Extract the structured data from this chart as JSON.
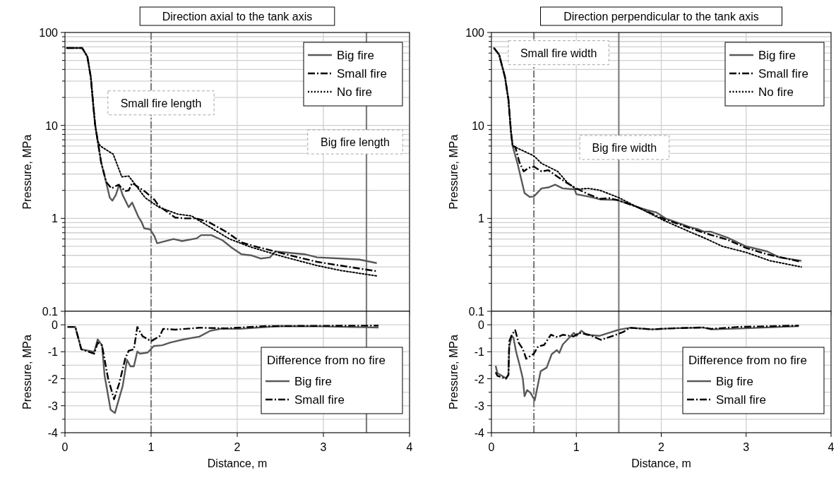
{
  "chart_data": [
    {
      "type": "line",
      "title": "Direction axial to the tank axis",
      "ylabel": "Pressure, MPa",
      "log": "y",
      "grid": true,
      "legend": "top right",
      "tick_labels": "y",
      "xlim": [
        0,
        4
      ],
      "xticks": [
        0,
        1,
        2,
        3,
        4
      ],
      "ylim": [
        0.1,
        100
      ],
      "yticks": [
        0.1,
        {
          "value": 0.2,
          "label": null
        },
        {
          "value": 0.3,
          "label": null
        },
        {
          "value": 0.4,
          "label": null
        },
        {
          "value": 0.5,
          "label": null
        },
        {
          "value": 0.6,
          "label": null
        },
        {
          "value": 0.7,
          "label": null
        },
        {
          "value": 0.8,
          "label": null
        },
        {
          "value": 0.9,
          "label": null
        },
        1,
        {
          "value": 2,
          "label": null
        },
        {
          "value": 3,
          "label": null
        },
        {
          "value": 4,
          "label": null
        },
        {
          "value": 5,
          "label": null
        },
        {
          "value": 6,
          "label": null
        },
        {
          "value": 7,
          "label": null
        },
        {
          "value": 8,
          "label": null
        },
        {
          "value": 9,
          "label": null
        },
        10,
        {
          "value": 20,
          "label": null
        },
        {
          "value": 30,
          "label": null
        },
        {
          "value": 40,
          "label": null
        },
        {
          "value": 50,
          "label": null
        },
        {
          "value": 60,
          "label": null
        },
        {
          "value": 70,
          "label": null
        },
        {
          "value": 80,
          "label": null
        },
        {
          "value": 90,
          "label": null
        },
        100
      ],
      "ref_lines": [
        {
          "axis": "x",
          "value": 1,
          "label": "Small fire length",
          "color": "#7f7f7f",
          "line_style": "dashdot"
        },
        {
          "axis": "x",
          "value": 3.5,
          "label": "Big fire length",
          "color": "#7f7f7f",
          "line_style": "solid"
        }
      ],
      "series": [
        {
          "name": "Big fire",
          "color": "#595959",
          "line_style": "solid",
          "x": [
            0.02,
            0.2,
            0.26,
            0.3,
            0.33,
            0.35,
            0.38,
            0.42,
            0.48,
            0.52,
            0.55,
            0.59,
            0.63,
            0.67,
            0.74,
            0.78,
            0.85,
            0.89,
            0.92,
            0.99,
            1.04,
            1.07,
            1.26,
            1.36,
            1.53,
            1.58,
            1.7,
            1.83,
            1.94,
            2.05,
            2.16,
            2.27,
            2.38,
            2.44,
            2.79,
            2.93,
            3.2,
            3.42,
            3.62
          ],
          "values": [
            68,
            68,
            55,
            33,
            16,
            10.2,
            6.8,
            4,
            2.4,
            1.67,
            1.55,
            1.78,
            2.3,
            1.78,
            1.32,
            1.48,
            1.05,
            0.91,
            0.78,
            0.76,
            0.64,
            0.54,
            0.6,
            0.57,
            0.61,
            0.66,
            0.66,
            0.58,
            0.48,
            0.41,
            0.4,
            0.37,
            0.38,
            0.44,
            0.41,
            0.38,
            0.37,
            0.36,
            0.33
          ]
        },
        {
          "name": "Small fire",
          "color": "#000000",
          "line_style": "dashdot",
          "x": [
            0.02,
            0.2,
            0.26,
            0.3,
            0.33,
            0.35,
            0.38,
            0.42,
            0.48,
            0.54,
            0.62,
            0.7,
            0.74,
            0.78,
            0.93,
            1.04,
            1.09,
            1.28,
            1.39,
            1.52,
            1.66,
            1.88,
            2.05,
            2.24,
            2.44,
            2.66,
            2.93,
            3.2,
            3.62
          ],
          "values": [
            68,
            68,
            55,
            33,
            16,
            10.2,
            6.8,
            4,
            2.45,
            2.1,
            2.3,
            1.97,
            2,
            2.4,
            1.94,
            1.58,
            1.36,
            1.02,
            1,
            1,
            0.92,
            0.71,
            0.55,
            0.49,
            0.44,
            0.39,
            0.34,
            0.31,
            0.27
          ]
        },
        {
          "name": "No fire",
          "color": "#000000",
          "line_style": "dotted",
          "x": [
            0.02,
            0.2,
            0.26,
            0.3,
            0.33,
            0.35,
            0.38,
            0.41,
            0.56,
            0.66,
            0.74,
            0.85,
            0.93,
            1.09,
            1.31,
            1.47,
            1.66,
            1.91,
            2.16,
            2.52,
            2.93,
            3.2,
            3.62
          ],
          "values": [
            68,
            68,
            55,
            33,
            16,
            10.2,
            6.8,
            6,
            4.9,
            2.8,
            2.85,
            2.1,
            1.67,
            1.32,
            1.11,
            1.06,
            0.83,
            0.6,
            0.49,
            0.39,
            0.31,
            0.275,
            0.24
          ]
        }
      ]
    },
    {
      "type": "line",
      "xlabel": "Distance, m",
      "ylabel": "Pressure, MPa",
      "legend_title": "Difference from no fire",
      "grid": true,
      "legend": "right",
      "xlim": [
        0,
        4
      ],
      "xticks": [
        0,
        1,
        2,
        3,
        4
      ],
      "ylim": [
        -4,
        0.5
      ],
      "yticks": [
        {
          "value": -4,
          "label": "-4"
        },
        {
          "value": -3.5,
          "label": null
        },
        {
          "value": -3,
          "label": "-3"
        },
        {
          "value": -2.5,
          "label": null
        },
        {
          "value": -2,
          "label": "-2"
        },
        {
          "value": -1.5,
          "label": null
        },
        {
          "value": -1,
          "label": "-1"
        },
        {
          "value": -0.5,
          "label": null
        },
        0
      ],
      "ref_lines": [
        {
          "axis": "x",
          "value": 1,
          "color": "#7f7f7f",
          "line_style": "dashdot"
        },
        {
          "axis": "x",
          "value": 3.5,
          "color": "#7f7f7f",
          "line_style": "solid"
        }
      ],
      "series": [
        {
          "name": "Big fire",
          "color": "#595959",
          "line_style": "solid",
          "x": [
            0.03,
            0.12,
            0.19,
            0.34,
            0.38,
            0.43,
            0.46,
            0.53,
            0.58,
            0.67,
            0.72,
            0.76,
            0.8,
            0.84,
            0.87,
            0.96,
            1.03,
            1.13,
            1.22,
            1.38,
            1.56,
            1.69,
            1.81,
            2.03,
            2.49,
            2.96,
            3.64
          ],
          "values": [
            -0.08,
            -0.08,
            -0.91,
            -1,
            -0.54,
            -0.76,
            -1.88,
            -3.15,
            -3.27,
            -2.27,
            -1.3,
            -1.54,
            -1.54,
            -0.99,
            -1.07,
            -1.03,
            -0.79,
            -0.76,
            -0.66,
            -0.54,
            -0.44,
            -0.22,
            -0.15,
            -0.15,
            -0.05,
            -0.06,
            -0.1
          ]
        },
        {
          "name": "Small fire",
          "color": "#000000",
          "line_style": "dashdot",
          "x": [
            0.03,
            0.12,
            0.19,
            0.34,
            0.38,
            0.43,
            0.5,
            0.57,
            0.63,
            0.7,
            0.74,
            0.8,
            0.84,
            0.9,
            1,
            1.1,
            1.14,
            1.28,
            1.56,
            1.87,
            2.34,
            3.64
          ],
          "values": [
            -0.08,
            -0.08,
            -0.91,
            -1.07,
            -0.66,
            -0.76,
            -1.98,
            -2.76,
            -2.17,
            -1.25,
            -0.96,
            -0.91,
            -0.08,
            -0.42,
            -0.61,
            -0.42,
            -0.15,
            -0.18,
            -0.11,
            -0.13,
            -0.05,
            -0.03
          ]
        }
      ]
    },
    {
      "type": "line",
      "title": "Direction perpendicular to the tank axis",
      "ylabel": "Pressure, MPa",
      "log": "y",
      "grid": true,
      "legend": "top right",
      "tick_labels": "y",
      "xlim": [
        0,
        4
      ],
      "xticks": [
        0,
        1,
        2,
        3,
        4
      ],
      "ylim": [
        0.1,
        100
      ],
      "yticks": [
        0.1,
        {
          "value": 0.2,
          "label": null
        },
        {
          "value": 0.3,
          "label": null
        },
        {
          "value": 0.4,
          "label": null
        },
        {
          "value": 0.5,
          "label": null
        },
        {
          "value": 0.6,
          "label": null
        },
        {
          "value": 0.7,
          "label": null
        },
        {
          "value": 0.8,
          "label": null
        },
        {
          "value": 0.9,
          "label": null
        },
        1,
        {
          "value": 2,
          "label": null
        },
        {
          "value": 3,
          "label": null
        },
        {
          "value": 4,
          "label": null
        },
        {
          "value": 5,
          "label": null
        },
        {
          "value": 6,
          "label": null
        },
        {
          "value": 7,
          "label": null
        },
        {
          "value": 8,
          "label": null
        },
        {
          "value": 9,
          "label": null
        },
        10,
        {
          "value": 20,
          "label": null
        },
        {
          "value": 30,
          "label": null
        },
        {
          "value": 40,
          "label": null
        },
        {
          "value": 50,
          "label": null
        },
        {
          "value": 60,
          "label": null
        },
        {
          "value": 70,
          "label": null
        },
        {
          "value": 80,
          "label": null
        },
        {
          "value": 90,
          "label": null
        },
        100
      ],
      "ref_lines": [
        {
          "axis": "x",
          "value": 0.5,
          "label": "Small fire width",
          "color": "#7f7f7f",
          "line_style": "dashdot"
        },
        {
          "axis": "x",
          "value": 1.5,
          "label": "Big fire width",
          "color": "#7f7f7f",
          "line_style": "solid"
        }
      ],
      "series": [
        {
          "name": "Big fire",
          "color": "#595959",
          "line_style": "solid",
          "x": [
            0.03,
            0.09,
            0.16,
            0.2,
            0.23,
            0.25,
            0.31,
            0.39,
            0.45,
            0.5,
            0.59,
            0.67,
            0.75,
            0.84,
            0.98,
            1,
            1.14,
            1.28,
            1.47,
            1.61,
            1.72,
            1.83,
            1.94,
            2.05,
            2.16,
            2.33,
            2.44,
            2.5,
            2.58,
            2.78,
            3,
            3.25,
            3.39,
            3.65
          ],
          "values": [
            68,
            58,
            33,
            19,
            8.5,
            6,
            3.8,
            1.87,
            1.7,
            1.72,
            2.1,
            2.15,
            2.3,
            2.1,
            2.05,
            1.82,
            1.72,
            1.6,
            1.58,
            1.44,
            1.32,
            1.23,
            1.16,
            1,
            0.92,
            0.81,
            0.76,
            0.72,
            0.72,
            0.62,
            0.5,
            0.44,
            0.38,
            0.35
          ]
        },
        {
          "name": "Small fire",
          "color": "#000000",
          "line_style": "dashdot",
          "x": [
            0.03,
            0.09,
            0.16,
            0.2,
            0.23,
            0.25,
            0.28,
            0.33,
            0.38,
            0.44,
            0.5,
            0.59,
            0.67,
            0.78,
            0.89,
            1,
            1.14,
            1.28,
            1.39,
            1.5,
            1.72,
            2.05,
            2.33,
            2.5,
            2.78,
            3,
            3.25,
            3.65
          ],
          "values": [
            68,
            58,
            33,
            19,
            8.5,
            6,
            5.9,
            4,
            3.2,
            3.5,
            3.6,
            3.2,
            3.3,
            2.8,
            2.4,
            2.1,
            1.82,
            1.62,
            1.65,
            1.56,
            1.32,
            0.97,
            0.79,
            0.7,
            0.59,
            0.48,
            0.41,
            0.34
          ]
        },
        {
          "name": "No fire",
          "color": "#000000",
          "line_style": "dotted",
          "x": [
            0.03,
            0.09,
            0.16,
            0.2,
            0.23,
            0.25,
            0.36,
            0.5,
            0.59,
            0.78,
            0.89,
            1,
            1.14,
            1.28,
            1.5,
            1.72,
            2.03,
            2.33,
            2.5,
            2.72,
            3,
            3.28,
            3.65
          ],
          "values": [
            68,
            58,
            33,
            19,
            8.5,
            6,
            5.4,
            4.7,
            3.9,
            3.2,
            2.45,
            2.05,
            2.1,
            2,
            1.67,
            1.32,
            0.95,
            0.72,
            0.62,
            0.5,
            0.43,
            0.35,
            0.3
          ]
        }
      ]
    },
    {
      "type": "line",
      "xlabel": "Distance, m",
      "ylabel": "Pressure, MPa",
      "legend_title": "Difference from no fire",
      "grid": true,
      "legend": "right",
      "xlim": [
        0,
        4
      ],
      "xticks": [
        0,
        1,
        2,
        3,
        4
      ],
      "ylim": [
        -4,
        0.5
      ],
      "yticks": [
        {
          "value": -4,
          "label": "-4"
        },
        {
          "value": -3.5,
          "label": null
        },
        {
          "value": -3,
          "label": "-3"
        },
        {
          "value": -2.5,
          "label": null
        },
        {
          "value": -2,
          "label": "-2"
        },
        {
          "value": -1.5,
          "label": null
        },
        {
          "value": -1,
          "label": "-1"
        },
        {
          "value": -0.5,
          "label": null
        },
        0
      ],
      "ref_lines": [
        {
          "axis": "x",
          "value": 0.5,
          "color": "#7f7f7f",
          "line_style": "dashdot"
        },
        {
          "axis": "x",
          "value": 1.5,
          "color": "#7f7f7f",
          "line_style": "solid"
        }
      ],
      "series": [
        {
          "name": "Big fire",
          "color": "#595959",
          "line_style": "solid",
          "x": [
            0.05,
            0.07,
            0.17,
            0.2,
            0.21,
            0.24,
            0.26,
            0.29,
            0.33,
            0.37,
            0.39,
            0.42,
            0.46,
            0.51,
            0.58,
            0.65,
            0.71,
            0.77,
            0.8,
            0.84,
            0.97,
            1,
            1.06,
            1.12,
            1.27,
            1.46,
            1.52,
            1.63,
            1.89,
            2.13,
            2.49,
            2.59,
            2.99,
            3.62
          ],
          "values": [
            -1.52,
            -1.79,
            -1.98,
            -1.86,
            -0.8,
            -0.41,
            -0.49,
            -0.99,
            -1.47,
            -2,
            -2.65,
            -2.42,
            -2.52,
            -2.8,
            -1.72,
            -1.59,
            -1.09,
            -0.94,
            -1.04,
            -0.73,
            -0.3,
            -0.41,
            -0.22,
            -0.37,
            -0.41,
            -0.22,
            -0.17,
            -0.11,
            -0.17,
            -0.13,
            -0.1,
            -0.17,
            -0.13,
            -0.05
          ]
        },
        {
          "name": "Small fire",
          "color": "#000000",
          "line_style": "dashdot",
          "x": [
            0.05,
            0.07,
            0.17,
            0.2,
            0.21,
            0.24,
            0.28,
            0.32,
            0.37,
            0.41,
            0.5,
            0.55,
            0.62,
            0.7,
            0.78,
            0.84,
            0.97,
            1.03,
            1.15,
            1.29,
            1.43,
            1.55,
            1.63,
            1.89,
            2.13,
            2.49,
            2.59,
            2.91,
            3.62
          ],
          "values": [
            -1.76,
            -1.89,
            -2,
            -1.86,
            -0.61,
            -0.37,
            -0.2,
            -0.66,
            -0.9,
            -1.26,
            -1.07,
            -0.8,
            -0.75,
            -0.37,
            -0.46,
            -0.37,
            -0.43,
            -0.3,
            -0.37,
            -0.56,
            -0.41,
            -0.27,
            -0.11,
            -0.17,
            -0.13,
            -0.1,
            -0.15,
            -0.08,
            -0.03
          ]
        }
      ]
    }
  ]
}
